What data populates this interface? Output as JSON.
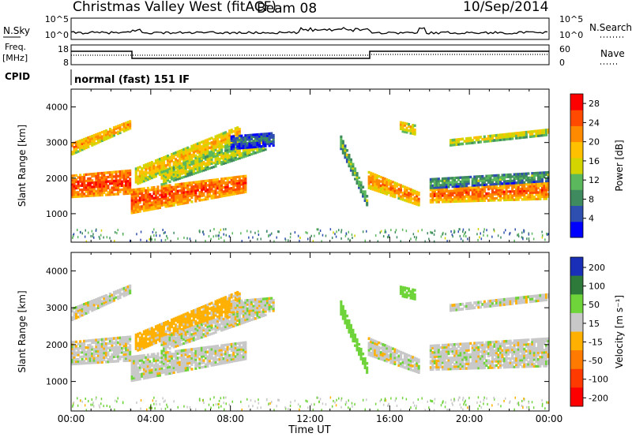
{
  "header": {
    "station": "Christmas Valley West (fitACF)",
    "beam": "Beam 08",
    "date": "10/Sep/2014"
  },
  "summary": {
    "nsky_label": "N.Sky",
    "nsky_ticks": [
      "10^5",
      "10^0"
    ],
    "nsearch_label": "N.Search",
    "nsearch_ticks": [
      "10^5",
      "10^0"
    ],
    "freq_label_1": "Freq.",
    "freq_label_2": "[MHz]",
    "freq_ticks": [
      "18",
      "8"
    ],
    "nave_label": "Nave",
    "nave_ticks": [
      "60",
      "0"
    ],
    "cpid_label": "CPID",
    "cpid_text": "normal (fast) 151 IF"
  },
  "colors": {
    "power_scale": [
      "#0000ff",
      "#2f4fb0",
      "#3f8a5f",
      "#5cb85c",
      "#d4d400",
      "#ffc000",
      "#ff8a00",
      "#ff4a00",
      "#ff0000"
    ],
    "velocity_scale": [
      "#1a2fb8",
      "#2e7a3a",
      "#6fd43a",
      "#c8c8c8",
      "#ffb000",
      "#ff7a00",
      "#ff3a00",
      "#ff0000"
    ]
  },
  "chart_data": [
    {
      "type": "heatmap",
      "name": "power",
      "xlabel": "",
      "ylabel": "Slant Range [km]",
      "x_ticks": [
        "00:00",
        "04:00",
        "08:00",
        "12:00",
        "16:00",
        "20:00",
        "00:00"
      ],
      "xlim_hours": [
        0,
        24
      ],
      "y_ticks": [
        1000,
        2000,
        3000,
        4000
      ],
      "ylim": [
        200,
        4500
      ],
      "colorbar_label": "Power [dB]",
      "colorbar_ticks": [
        4,
        8,
        12,
        16,
        20,
        24,
        28
      ],
      "colorbar_range": [
        0,
        30
      ],
      "bands": [
        {
          "t0": 0.0,
          "t1": 3.0,
          "r0": 2650,
          "r1": 3000,
          "r_end0": 3400,
          "r_end1": 3650,
          "v": 22
        },
        {
          "t0": 0.0,
          "t1": 3.0,
          "r0": 1450,
          "r1": 2100,
          "r_end0": 1550,
          "r_end1": 2250,
          "v": 27
        },
        {
          "t0": 3.0,
          "t1": 8.8,
          "r0": 1000,
          "r1": 1700,
          "r_end0": 1600,
          "r_end1": 2100,
          "v": 26
        },
        {
          "t0": 3.2,
          "t1": 8.5,
          "r0": 1800,
          "r1": 2300,
          "r_end0": 3000,
          "r_end1": 3500,
          "v": 20
        },
        {
          "t0": 4.5,
          "t1": 9.8,
          "r0": 1800,
          "r1": 2200,
          "r_end0": 2800,
          "r_end1": 3200,
          "v": 17
        },
        {
          "t0": 8.0,
          "t1": 10.2,
          "r0": 2800,
          "r1": 3200,
          "r_end0": 2900,
          "r_end1": 3300,
          "v": 8
        },
        {
          "t0": 13.5,
          "t1": 14.9,
          "r0": 2800,
          "r1": 3200,
          "r_end0": 1100,
          "r_end1": 1400,
          "v": 14
        },
        {
          "t0": 14.9,
          "t1": 17.5,
          "r0": 1700,
          "r1": 2200,
          "r_end0": 1200,
          "r_end1": 1600,
          "v": 23
        },
        {
          "t0": 16.5,
          "t1": 17.3,
          "r0": 3300,
          "r1": 3600,
          "r_end0": 3200,
          "r_end1": 3500,
          "v": 20
        },
        {
          "t0": 18.0,
          "t1": 24.0,
          "r0": 1300,
          "r1": 1700,
          "r_end0": 1400,
          "r_end1": 1900,
          "v": 25
        },
        {
          "t0": 18.0,
          "t1": 24.0,
          "r0": 1700,
          "r1": 2000,
          "r_end0": 1900,
          "r_end1": 2200,
          "v": 12
        },
        {
          "t0": 19.0,
          "t1": 24.0,
          "r0": 2900,
          "r1": 3100,
          "r_end0": 3200,
          "r_end1": 3400,
          "v": 18
        }
      ]
    },
    {
      "type": "heatmap",
      "name": "velocity",
      "xlabel": "Time UT",
      "ylabel": "Slant Range [km]",
      "x_ticks": [
        "00:00",
        "04:00",
        "08:00",
        "12:00",
        "16:00",
        "20:00",
        "00:00"
      ],
      "xlim_hours": [
        0,
        24
      ],
      "y_ticks": [
        1000,
        2000,
        3000,
        4000
      ],
      "ylim": [
        200,
        4500
      ],
      "colorbar_label": "Velocity [m s⁻¹]",
      "colorbar_ticks": [
        "200",
        "100",
        "50",
        "15",
        "-15",
        "-50",
        "-100",
        "-200"
      ],
      "bands": [
        {
          "t0": 0.0,
          "t1": 3.0,
          "r0": 2650,
          "r1": 3000,
          "r_end0": 3400,
          "r_end1": 3650,
          "v": 0
        },
        {
          "t0": 0.0,
          "t1": 3.0,
          "r0": 1450,
          "r1": 2100,
          "r_end0": 1550,
          "r_end1": 2250,
          "v": 0
        },
        {
          "t0": 3.0,
          "t1": 8.8,
          "r0": 1000,
          "r1": 1700,
          "r_end0": 1600,
          "r_end1": 2100,
          "v": 0
        },
        {
          "t0": 3.2,
          "t1": 8.5,
          "r0": 1800,
          "r1": 2300,
          "r_end0": 3000,
          "r_end1": 3500,
          "v": -30
        },
        {
          "t0": 4.5,
          "t1": 9.8,
          "r0": 1800,
          "r1": 2200,
          "r_end0": 2800,
          "r_end1": 3200,
          "v": 0
        },
        {
          "t0": 8.0,
          "t1": 10.2,
          "r0": 2800,
          "r1": 3200,
          "r_end0": 2900,
          "r_end1": 3300,
          "v": 0
        },
        {
          "t0": 13.5,
          "t1": 14.9,
          "r0": 2800,
          "r1": 3200,
          "r_end0": 1100,
          "r_end1": 1400,
          "v": 40
        },
        {
          "t0": 14.9,
          "t1": 17.5,
          "r0": 1700,
          "r1": 2200,
          "r_end0": 1200,
          "r_end1": 1600,
          "v": 0
        },
        {
          "t0": 16.5,
          "t1": 17.3,
          "r0": 3300,
          "r1": 3600,
          "r_end0": 3200,
          "r_end1": 3500,
          "v": 40
        },
        {
          "t0": 18.0,
          "t1": 24.0,
          "r0": 1300,
          "r1": 1700,
          "r_end0": 1400,
          "r_end1": 1900,
          "v": 0
        },
        {
          "t0": 18.0,
          "t1": 24.0,
          "r0": 1700,
          "r1": 2000,
          "r_end0": 1900,
          "r_end1": 2200,
          "v": 0
        },
        {
          "t0": 19.0,
          "t1": 24.0,
          "r0": 2900,
          "r1": 3100,
          "r_end0": 3200,
          "r_end1": 3400,
          "v": 0
        }
      ]
    }
  ]
}
